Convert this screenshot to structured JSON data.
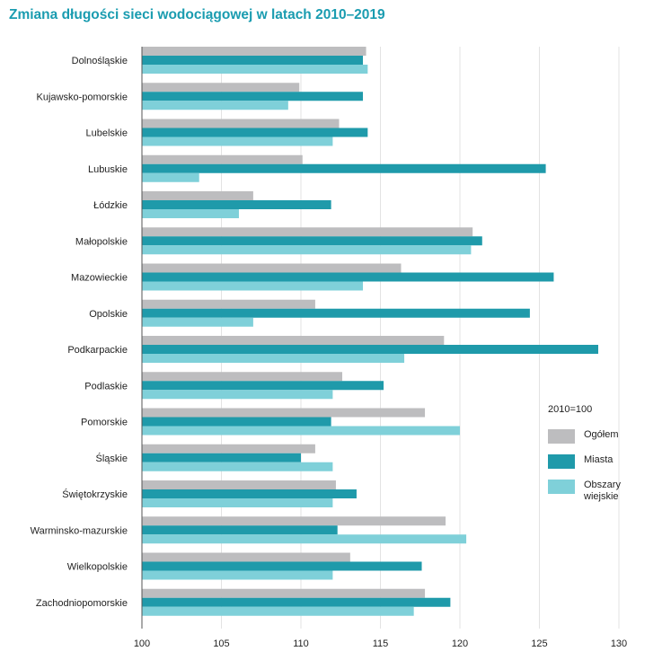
{
  "chart_data": {
    "type": "bar",
    "orientation": "horizontal",
    "title": "Zmiana długości sieci wodociągowej w latach 2010–2019",
    "legend_title": "2010=100",
    "xlim": [
      100,
      130
    ],
    "xticks": [
      100,
      105,
      110,
      115,
      120,
      125,
      130
    ],
    "grid": true,
    "legend_position": "right",
    "categories": [
      "Dolnośląskie",
      "Kujawsko-pomorskie",
      "Lubelskie",
      "Lubuskie",
      "Łódzkie",
      "Małopolskie",
      "Mazowieckie",
      "Opolskie",
      "Podkarpackie",
      "Podlaskie",
      "Pomorskie",
      "Śląskie",
      "Świętokrzyskie",
      "Warminsko-mazurskie",
      "Wielkopolskie",
      "Zachodniopomorskie"
    ],
    "series": [
      {
        "name": "Ogółem",
        "color": "#bdbdbf",
        "values": [
          114.1,
          109.9,
          112.4,
          110.1,
          107.0,
          120.8,
          116.3,
          110.9,
          119.0,
          112.6,
          117.8,
          110.9,
          112.2,
          119.1,
          113.1,
          117.8
        ]
      },
      {
        "name": "Miasta",
        "color": "#1f9aaa",
        "values": [
          113.9,
          113.9,
          114.2,
          125.4,
          111.9,
          121.4,
          125.9,
          124.4,
          128.7,
          115.2,
          111.9,
          110.0,
          113.5,
          112.3,
          117.6,
          119.4
        ]
      },
      {
        "name": "Obszary wiejskie",
        "color": "#7fd0d9",
        "values": [
          114.2,
          109.2,
          112.0,
          103.6,
          106.1,
          120.7,
          113.9,
          107.0,
          116.5,
          112.0,
          120.0,
          112.0,
          112.0,
          120.4,
          112.0,
          117.1
        ]
      }
    ]
  }
}
